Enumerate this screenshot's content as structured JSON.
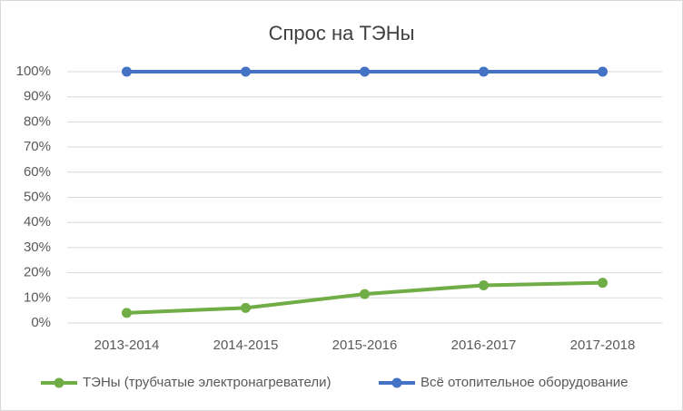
{
  "chart_data": {
    "type": "line",
    "title": "Спрос на ТЭНы",
    "categories": [
      "2013-2014",
      "2014-2015",
      "2015-2016",
      "2016-2017",
      "2017-2018"
    ],
    "series": [
      {
        "name": "ТЭНы (трубчатые электронагреватели)",
        "color": "#70ad47",
        "values": [
          4,
          6,
          11.5,
          15,
          16
        ]
      },
      {
        "name": "Всё отопительное оборудование",
        "color": "#4472c4",
        "values": [
          100,
          100,
          100,
          100,
          100
        ]
      }
    ],
    "ylim": [
      0,
      100
    ],
    "yticks": [
      {
        "value": 0,
        "label": "0%"
      },
      {
        "value": 10,
        "label": "10%"
      },
      {
        "value": 20,
        "label": "20%"
      },
      {
        "value": 30,
        "label": "30%"
      },
      {
        "value": 40,
        "label": "40%"
      },
      {
        "value": 50,
        "label": "50%"
      },
      {
        "value": 60,
        "label": "60%"
      },
      {
        "value": 70,
        "label": "70%"
      },
      {
        "value": 80,
        "label": "80%"
      },
      {
        "value": 90,
        "label": "90%"
      },
      {
        "value": 100,
        "label": "100%"
      }
    ],
    "grid": true,
    "legend": "bottom"
  }
}
